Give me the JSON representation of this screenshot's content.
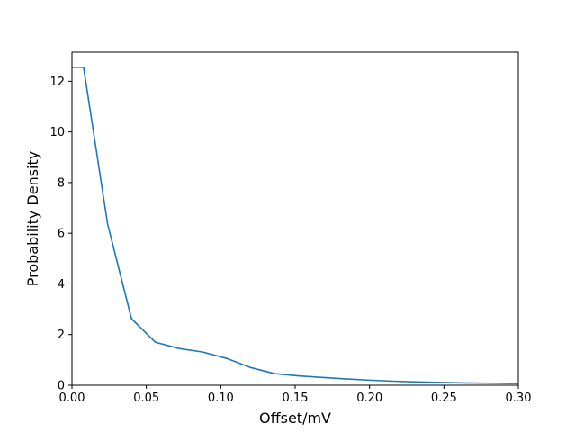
{
  "chart_data": {
    "type": "line",
    "title": "",
    "xlabel": "Offset/mV",
    "ylabel": "Probability Density",
    "xlim": [
      0.0,
      0.3
    ],
    "ylim": [
      0,
      13.15
    ],
    "grid": false,
    "line_color": "#1f77b4",
    "x_ticks": [
      0.0,
      0.05,
      0.1,
      0.15,
      0.2,
      0.25,
      0.3
    ],
    "x_tick_labels": [
      "0.00",
      "0.05",
      "0.10",
      "0.15",
      "0.20",
      "0.25",
      "0.30"
    ],
    "y_ticks": [
      0,
      2,
      4,
      6,
      8,
      10,
      12
    ],
    "y_tick_labels": [
      "0",
      "2",
      "4",
      "6",
      "8",
      "10",
      "12"
    ],
    "series": [
      {
        "x": [
          0.0,
          0.0078,
          0.024,
          0.04,
          0.056,
          0.072,
          0.088,
          0.104,
          0.12,
          0.136,
          0.152,
          0.168,
          0.184,
          0.2,
          0.216,
          0.232,
          0.248,
          0.264,
          0.28,
          0.296,
          0.3
        ],
        "y": [
          12.55,
          12.55,
          6.35,
          2.63,
          1.7,
          1.45,
          1.31,
          1.06,
          0.7,
          0.46,
          0.37,
          0.31,
          0.25,
          0.2,
          0.16,
          0.13,
          0.11,
          0.09,
          0.08,
          0.07,
          0.07
        ]
      }
    ]
  }
}
